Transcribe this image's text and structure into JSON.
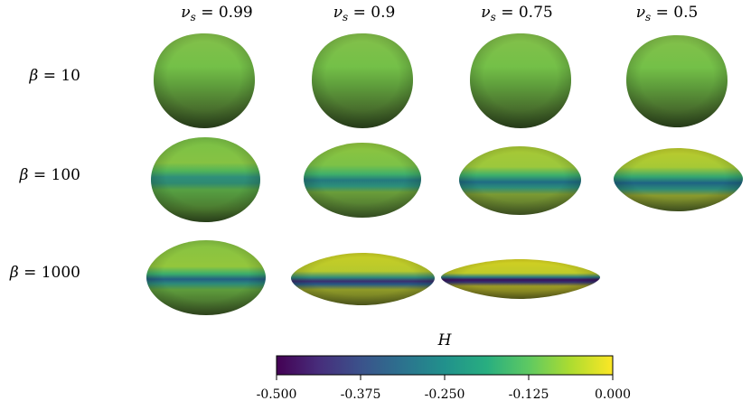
{
  "column_headers": [
    {
      "symbol": "ν",
      "sub": "s",
      "value": "0.99"
    },
    {
      "symbol": "ν",
      "sub": "s",
      "value": "0.9"
    },
    {
      "symbol": "ν",
      "sub": "s",
      "value": "0.75"
    },
    {
      "symbol": "ν",
      "sub": "s",
      "value": "0.5"
    }
  ],
  "row_headers": [
    {
      "symbol": "β",
      "value": "10"
    },
    {
      "symbol": "β",
      "value": "100"
    },
    {
      "symbol": "β",
      "value": "1000"
    }
  ],
  "cells": [
    {
      "row": 0,
      "col": 0,
      "present": true
    },
    {
      "row": 0,
      "col": 1,
      "present": true
    },
    {
      "row": 0,
      "col": 2,
      "present": true
    },
    {
      "row": 0,
      "col": 3,
      "present": true
    },
    {
      "row": 1,
      "col": 0,
      "present": true
    },
    {
      "row": 1,
      "col": 1,
      "present": true
    },
    {
      "row": 1,
      "col": 2,
      "present": true
    },
    {
      "row": 1,
      "col": 3,
      "present": true
    },
    {
      "row": 2,
      "col": 0,
      "present": true
    },
    {
      "row": 2,
      "col": 1,
      "present": true
    },
    {
      "row": 2,
      "col": 2,
      "present": true
    },
    {
      "row": 2,
      "col": 3,
      "present": false
    }
  ],
  "colorbar": {
    "title": "H",
    "colormap": "viridis",
    "colors": [
      "#440154",
      "#3b528b",
      "#21918c",
      "#5ec962",
      "#fde725"
    ],
    "range": [
      -0.5,
      0.0
    ],
    "ticks": [
      "-0.500",
      "-0.375",
      "-0.250",
      "-0.125",
      "0.000"
    ]
  }
}
